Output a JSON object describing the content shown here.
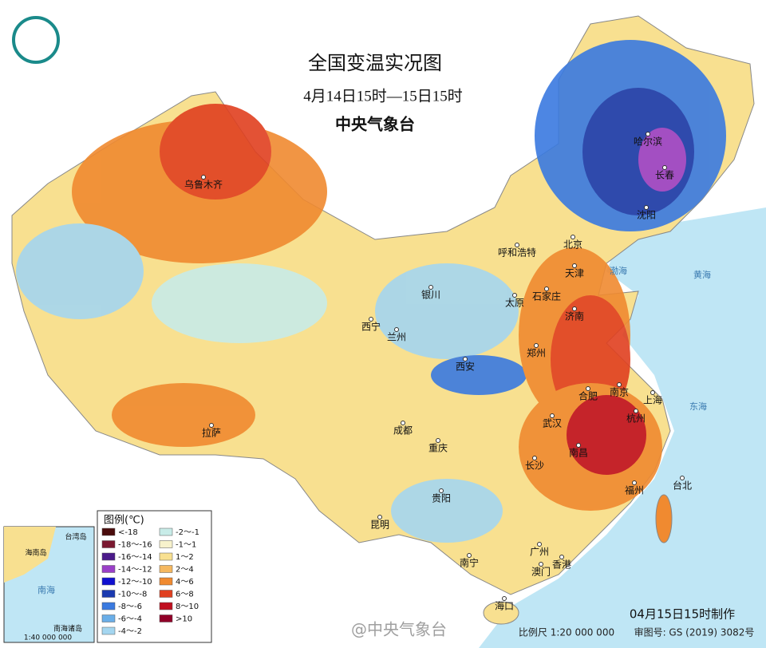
{
  "header": {
    "title": "全国变温实况图",
    "subtitle": "4月14日15时—15日15时",
    "issuer": "中央气象台"
  },
  "cities": [
    "乌鲁木齐",
    "哈尔滨",
    "长春",
    "沈阳",
    "北京",
    "天津",
    "呼和浩特",
    "石家庄",
    "太原",
    "济南",
    "银川",
    "西宁",
    "兰州",
    "郑州",
    "西安",
    "合肥",
    "南京",
    "上海",
    "杭州",
    "武汉",
    "成都",
    "重庆",
    "拉萨",
    "南昌",
    "长沙",
    "福州",
    "台北",
    "贵阳",
    "昆明",
    "广州",
    "南宁",
    "香港",
    "澳门",
    "海口"
  ],
  "seas": [
    "黄海",
    "东海",
    "渤海"
  ],
  "legend": {
    "title": "图例(℃)",
    "items": [
      {
        "label": "<-18",
        "color": "#4a0c0c"
      },
      {
        "label": "-18～-16",
        "color": "#7a1830"
      },
      {
        "label": "-16～-14",
        "color": "#4b1a8a"
      },
      {
        "label": "-14～-12",
        "color": "#9a40c8"
      },
      {
        "label": "-12～-10",
        "color": "#1010d0"
      },
      {
        "label": "-10～-8",
        "color": "#1a3ab0"
      },
      {
        "label": "-8～-6",
        "color": "#3a7ae0"
      },
      {
        "label": "-6～-4",
        "color": "#6aaee8"
      },
      {
        "label": "-4～-2",
        "color": "#a4d6f0"
      },
      {
        "label": "-2～-1",
        "color": "#c8ece8"
      },
      {
        "label": "-1～1",
        "color": "#f7f2cc"
      },
      {
        "label": "1～2",
        "color": "#f8e090"
      },
      {
        "label": "2～4",
        "color": "#f5b860"
      },
      {
        "label": "4～6",
        "color": "#f08a30"
      },
      {
        "label": "6～8",
        "color": "#e04020"
      },
      {
        "label": "8～10",
        "color": "#c01020"
      },
      {
        "label": ">10",
        "color": "#900028"
      }
    ]
  },
  "inset": {
    "title": "南海诸岛",
    "scale": "1:40 000 000",
    "labels": [
      "南海",
      "海南岛",
      "台湾岛"
    ]
  },
  "footer": {
    "made": "04月15日15时制作",
    "scale": "比例尺 1:20 000 000",
    "approval": "审图号: GS (2019) 3082号",
    "watermark": "@中央气象台"
  }
}
